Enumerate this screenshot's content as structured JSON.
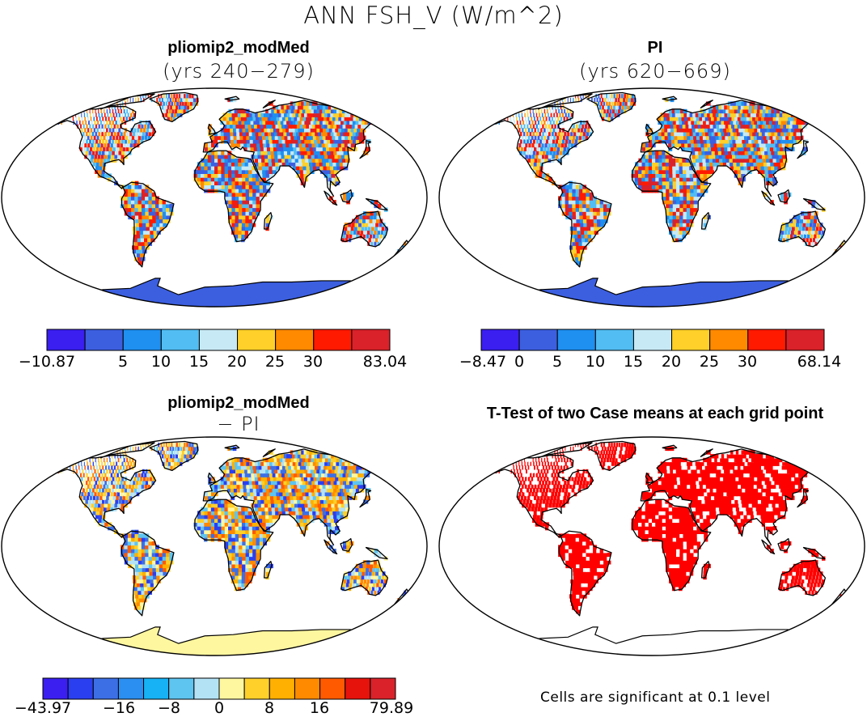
{
  "figure": {
    "title": "ANN FSH_V (W/m^2)"
  },
  "panels": [
    {
      "id": "case",
      "title": "pliomip2_modMed",
      "subtitle": "(yrs 240−279)",
      "colorbar": {
        "ticks": [
          "−10.87",
          "5",
          "10",
          "15",
          "20",
          "25",
          "30",
          "83.04"
        ],
        "colors": [
          "#3a1ff0",
          "#3c5fe0",
          "#1f8ff0",
          "#52bdf2",
          "#c7e9f5",
          "#ffd02a",
          "#ff8a00",
          "#ff1a00",
          "#d9222a"
        ]
      },
      "land_palette": [
        "#3c5fe0",
        "#1f8ff0",
        "#52bdf2",
        "#c7e9f5",
        "#ffd02a",
        "#ff8a00",
        "#ff1a00",
        "#d9222a"
      ],
      "antarctica_color": "#3c5fe0"
    },
    {
      "id": "pi",
      "title": "PI",
      "subtitle": "(yrs 620−669)",
      "colorbar": {
        "ticks": [
          "−8.47",
          "0",
          "5",
          "10",
          "15",
          "20",
          "25",
          "30",
          "68.14"
        ],
        "colors": [
          "#3a1ff0",
          "#3c5fe0",
          "#1f8ff0",
          "#52bdf2",
          "#c7e9f5",
          "#ffd02a",
          "#ff8a00",
          "#ff1a00",
          "#d9222a"
        ]
      },
      "land_palette": [
        "#3c5fe0",
        "#1f8ff0",
        "#52bdf2",
        "#c7e9f5",
        "#ffd02a",
        "#ff8a00",
        "#ff1a00",
        "#d9222a"
      ],
      "antarctica_color": "#3c5fe0"
    },
    {
      "id": "diff",
      "title": "pliomip2_modMed",
      "subtitle": "− PI",
      "colorbar": {
        "ticks": [
          "−43.97",
          "−16",
          "−8",
          "0",
          "8",
          "16",
          "79.89"
        ],
        "colors": [
          "#3a1ff0",
          "#2a3ff0",
          "#3c6fe6",
          "#2a8ff0",
          "#16b2f5",
          "#5ec4f0",
          "#b4e2f5",
          "#fff7a0",
          "#ffd02a",
          "#ffb000",
          "#ff8a00",
          "#ff5a00",
          "#e6120c",
          "#d9222a"
        ]
      },
      "land_palette": [
        "#fff7a0",
        "#ffd02a",
        "#ffb000",
        "#ff8a00",
        "#b4e2f5",
        "#5ec4f0",
        "#2a3ff0",
        "#3c6fe6",
        "#ff5a00"
      ],
      "antarctica_color": "#fff7a0"
    },
    {
      "id": "ttest",
      "title": "T-Test of two Case means at each grid point",
      "note": "Cells are significant at 0.1 level",
      "land_palette": [
        "#ff0000",
        "#ff0000",
        "#ff0000",
        "#ff0000",
        "#ffffff"
      ],
      "antarctica_color": "#ffffff"
    }
  ]
}
